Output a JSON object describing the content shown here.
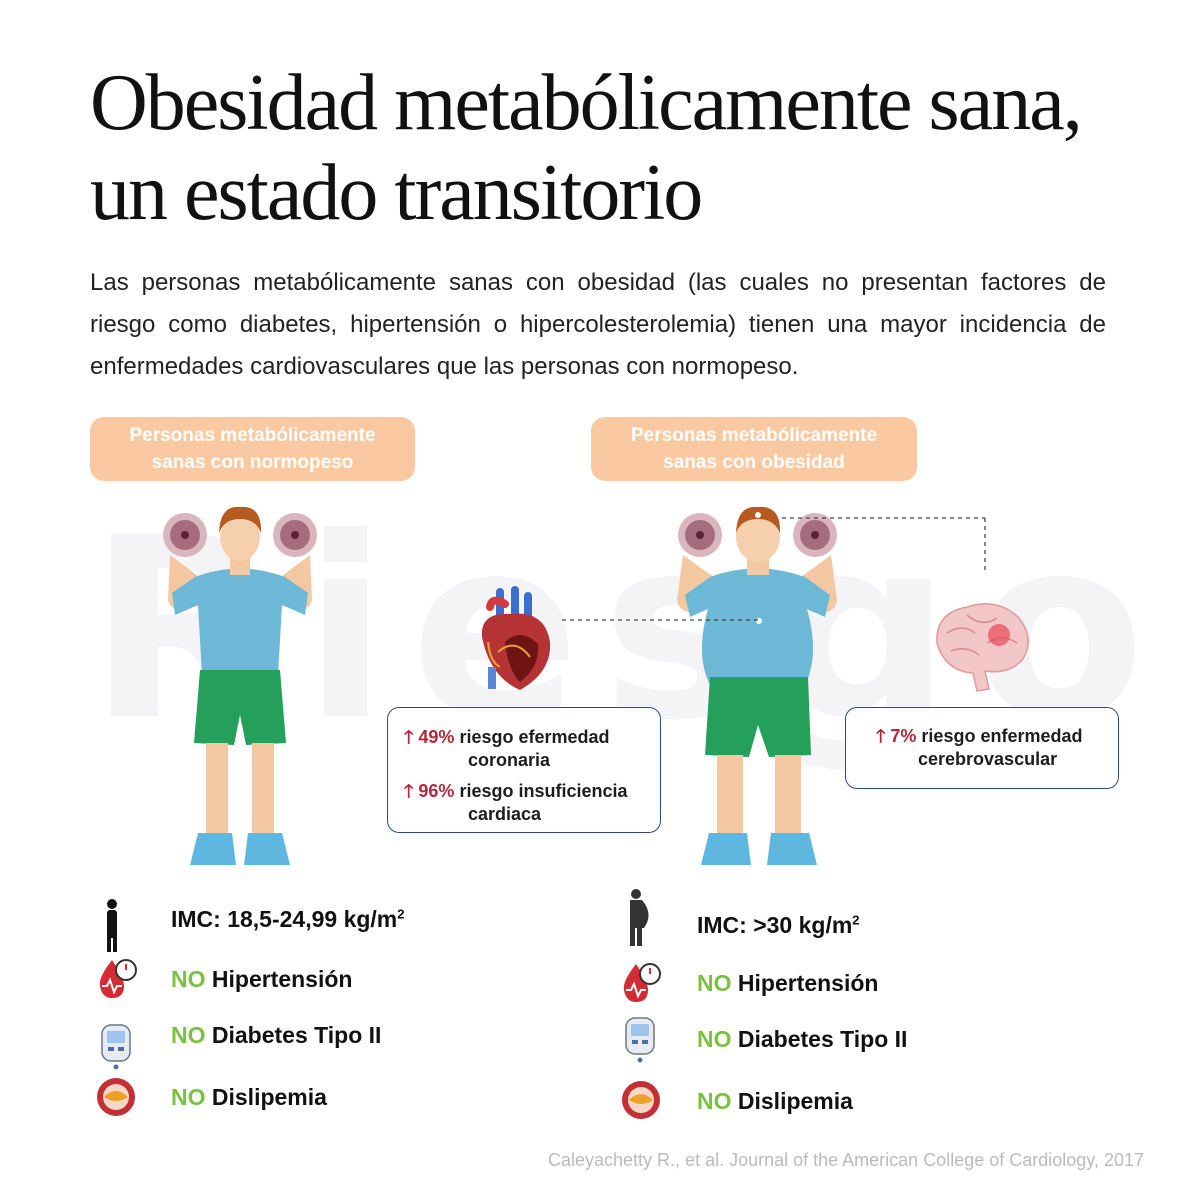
{
  "title": "Obesidad metabólicamente sana, un estado transitorio",
  "intro": "Las personas metabólicamente sanas con obesidad (las cuales no presentan factores de riesgo como diabetes, hipertensión o hipercolesterolemia) tienen una mayor incidencia de enfermedades cardiovasculares que las personas con normopeso.",
  "watermark": "Riesgo",
  "groups": {
    "normal": {
      "label_line1": "Personas metabólicamente",
      "label_line2": "sanas con normopeso",
      "imc_label": "IMC: 18,5-24,99 kg/m",
      "imc_sup": "2",
      "no": "NO",
      "hipertension": "Hipertensión",
      "diabetes": "Diabetes Tipo II",
      "dislipemia": "Dislipemia"
    },
    "obese": {
      "label_line1": "Personas metabólicamente",
      "label_line2": "sanas con obesidad",
      "imc_label": "IMC: >30 kg/m",
      "imc_sup": "2",
      "no": "NO",
      "hipertension": "Hipertensión",
      "diabetes": "Diabetes Tipo II",
      "dislipemia": "Dislipemia"
    }
  },
  "risks": {
    "coronary_pct": "49%",
    "coronary_l1": "riesgo efermedad",
    "coronary_l2": "coronaria",
    "heart_failure_pct": "96%",
    "heart_failure_l1": "riesgo insuficiencia",
    "heart_failure_l2": "cardiaca",
    "cerebro_pct": "7%",
    "cerebro_l1": "riesgo enfermedad",
    "cerebro_l2": "cerebrovascular"
  },
  "arrow": "🡑",
  "source": "Caleyachetty R., et al. Journal of the American College of Cardiology, 2017",
  "colors": {
    "pill": "#fbc9a1",
    "risk": "#b2283a",
    "no": "#7ac13e",
    "box_border": "#2e4a86",
    "shirt": "#6cb8d6",
    "shorts": "#24a05a"
  }
}
